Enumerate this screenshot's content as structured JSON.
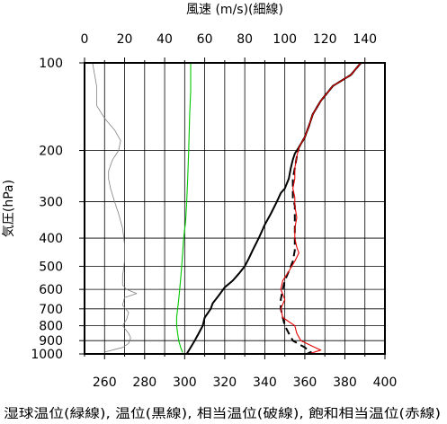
{
  "chart_data": {
    "type": "line",
    "title": "",
    "top_axis": {
      "label": "風速 (m/s)(細線)",
      "range": [
        0,
        150
      ],
      "ticks": [
        0,
        20,
        40,
        60,
        80,
        100,
        120,
        140
      ]
    },
    "bottom_axis": {
      "label": "湿球温位(緑線), 温位(黒線), 相当温位(破線), 飽和相当温位(赤線)",
      "range": [
        250,
        400
      ],
      "ticks": [
        260,
        280,
        300,
        320,
        340,
        360,
        380,
        400
      ]
    },
    "left_axis": {
      "label": "気圧(hPa)",
      "scale": "log",
      "range": [
        1000,
        100
      ],
      "ticks": [
        1000,
        900,
        800,
        700,
        600,
        500,
        400,
        300,
        200,
        100
      ]
    },
    "grid": true,
    "series": [
      {
        "name": "風速",
        "axis": "top",
        "color": "#808080",
        "style": "thin",
        "points": [
          [
            4,
            100
          ],
          [
            6,
            120
          ],
          [
            6,
            140
          ],
          [
            10,
            155
          ],
          [
            15,
            170
          ],
          [
            18,
            185
          ],
          [
            17,
            200
          ],
          [
            14,
            215
          ],
          [
            13,
            225
          ],
          [
            12,
            235
          ],
          [
            12,
            250
          ],
          [
            13,
            270
          ],
          [
            15,
            300
          ],
          [
            17,
            330
          ],
          [
            19,
            370
          ],
          [
            20,
            420
          ],
          [
            20,
            480
          ],
          [
            19,
            540
          ],
          [
            19,
            580
          ],
          [
            21,
            600
          ],
          [
            26,
            620
          ],
          [
            20,
            640
          ],
          [
            19,
            680
          ],
          [
            22,
            720
          ],
          [
            21,
            760
          ],
          [
            19,
            800
          ],
          [
            22,
            850
          ],
          [
            23,
            880
          ],
          [
            22,
            920
          ],
          [
            19,
            950
          ],
          [
            10,
            985
          ]
        ]
      },
      {
        "name": "湿球温位",
        "axis": "bottom",
        "color": "#00c800",
        "style": "solid",
        "points": [
          [
            303,
            100
          ],
          [
            303,
            125
          ],
          [
            302.5,
            150
          ],
          [
            302,
            200
          ],
          [
            301.5,
            250
          ],
          [
            301,
            300
          ],
          [
            300.5,
            350
          ],
          [
            299.5,
            400
          ],
          [
            299,
            450
          ],
          [
            298.5,
            500
          ],
          [
            298,
            550
          ],
          [
            297.5,
            600
          ],
          [
            297,
            650
          ],
          [
            296.5,
            700
          ],
          [
            296,
            750
          ],
          [
            296,
            800
          ],
          [
            296.5,
            850
          ],
          [
            297,
            900
          ],
          [
            298,
            950
          ],
          [
            299,
            990
          ]
        ]
      },
      {
        "name": "温位",
        "axis": "bottom",
        "color": "#000000",
        "style": "solid",
        "points": [
          [
            388,
            100
          ],
          [
            383,
            110
          ],
          [
            374,
            120
          ],
          [
            368,
            135
          ],
          [
            364,
            150
          ],
          [
            362,
            165
          ],
          [
            360,
            180
          ],
          [
            357,
            195
          ],
          [
            355,
            205
          ],
          [
            354,
            215
          ],
          [
            353,
            230
          ],
          [
            352,
            250
          ],
          [
            350,
            270
          ],
          [
            348,
            280
          ],
          [
            346,
            300
          ],
          [
            343,
            330
          ],
          [
            340,
            360
          ],
          [
            337,
            400
          ],
          [
            334,
            440
          ],
          [
            332,
            470
          ],
          [
            330,
            500
          ],
          [
            327,
            530
          ],
          [
            324,
            560
          ],
          [
            320,
            590
          ],
          [
            317,
            630
          ],
          [
            314,
            670
          ],
          [
            313,
            700
          ],
          [
            310,
            750
          ],
          [
            309,
            800
          ],
          [
            307,
            850
          ],
          [
            305,
            900
          ],
          [
            303,
            950
          ],
          [
            301,
            1000
          ]
        ]
      },
      {
        "name": "相当温位",
        "axis": "bottom",
        "color": "#000000",
        "style": "dashed",
        "points": [
          [
            388,
            100
          ],
          [
            383,
            110
          ],
          [
            374,
            120
          ],
          [
            368,
            135
          ],
          [
            364,
            150
          ],
          [
            362,
            165
          ],
          [
            360,
            180
          ],
          [
            357,
            195
          ],
          [
            356,
            210
          ],
          [
            355,
            230
          ],
          [
            354,
            250
          ],
          [
            354,
            270
          ],
          [
            354,
            290
          ],
          [
            355,
            310
          ],
          [
            355,
            340
          ],
          [
            355,
            370
          ],
          [
            355,
            400
          ],
          [
            355,
            440
          ],
          [
            354,
            480
          ],
          [
            352,
            520
          ],
          [
            350,
            560
          ],
          [
            349,
            600
          ],
          [
            348,
            650
          ],
          [
            348,
            700
          ],
          [
            349,
            750
          ],
          [
            350,
            800
          ],
          [
            352,
            850
          ],
          [
            354,
            900
          ],
          [
            360,
            950
          ],
          [
            363,
            985
          ],
          [
            361,
            1000
          ]
        ]
      },
      {
        "name": "飽和相当温位",
        "axis": "bottom",
        "color": "#e60000",
        "style": "solid",
        "points": [
          [
            388,
            100
          ],
          [
            383,
            110
          ],
          [
            374,
            120
          ],
          [
            368,
            135
          ],
          [
            364,
            150
          ],
          [
            362,
            165
          ],
          [
            360,
            180
          ],
          [
            357,
            195
          ],
          [
            356,
            210
          ],
          [
            355,
            230
          ],
          [
            355,
            250
          ],
          [
            354,
            270
          ],
          [
            355,
            290
          ],
          [
            355,
            310
          ],
          [
            356,
            340
          ],
          [
            355,
            370
          ],
          [
            355,
            400
          ],
          [
            356,
            430
          ],
          [
            357,
            450
          ],
          [
            355,
            480
          ],
          [
            352,
            520
          ],
          [
            349,
            560
          ],
          [
            348,
            600
          ],
          [
            350,
            650
          ],
          [
            348,
            700
          ],
          [
            349,
            750
          ],
          [
            355,
            800
          ],
          [
            356,
            850
          ],
          [
            358,
            900
          ],
          [
            365,
            950
          ],
          [
            368,
            970
          ],
          [
            362,
            1000
          ]
        ]
      }
    ]
  }
}
